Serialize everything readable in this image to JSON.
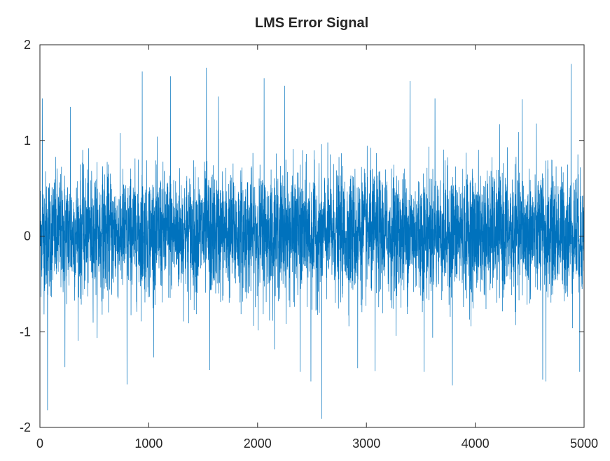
{
  "chart_data": {
    "type": "line",
    "title": "LMS Error Signal",
    "xlabel": "",
    "ylabel": "",
    "xlim": [
      0,
      5000
    ],
    "ylim": [
      -2,
      2
    ],
    "x_ticks": [
      "0",
      "1000",
      "2000",
      "3000",
      "4000",
      "5000"
    ],
    "y_ticks": [
      "-2",
      "-1",
      "0",
      "1",
      "2"
    ],
    "grid": false,
    "legend": "none",
    "series_color": "#0072BD",
    "series": [
      {
        "n_points": 5000,
        "x_start": 1,
        "x_step": 1,
        "typical_band": [
          -0.65,
          0.7
        ],
        "peak_points": [
          {
            "x": 22,
            "y": 1.44
          },
          {
            "x": 70,
            "y": -1.82
          },
          {
            "x": 230,
            "y": -1.37
          },
          {
            "x": 280,
            "y": 1.35
          },
          {
            "x": 800,
            "y": -1.55
          },
          {
            "x": 940,
            "y": 1.72
          },
          {
            "x": 1200,
            "y": 1.67
          },
          {
            "x": 1530,
            "y": 1.76
          },
          {
            "x": 1560,
            "y": -1.4
          },
          {
            "x": 1640,
            "y": 1.46
          },
          {
            "x": 2060,
            "y": 1.65
          },
          {
            "x": 2250,
            "y": 1.57
          },
          {
            "x": 2390,
            "y": -1.42
          },
          {
            "x": 2490,
            "y": -1.52
          },
          {
            "x": 2590,
            "y": -1.91
          },
          {
            "x": 2920,
            "y": -1.38
          },
          {
            "x": 3080,
            "y": -1.41
          },
          {
            "x": 3400,
            "y": 1.62
          },
          {
            "x": 3530,
            "y": -1.42
          },
          {
            "x": 3630,
            "y": 1.44
          },
          {
            "x": 3790,
            "y": -1.56
          },
          {
            "x": 4430,
            "y": 1.43
          },
          {
            "x": 4620,
            "y": -1.5
          },
          {
            "x": 4650,
            "y": -1.52
          },
          {
            "x": 4880,
            "y": 1.8
          },
          {
            "x": 4960,
            "y": -1.42
          }
        ]
      }
    ]
  }
}
